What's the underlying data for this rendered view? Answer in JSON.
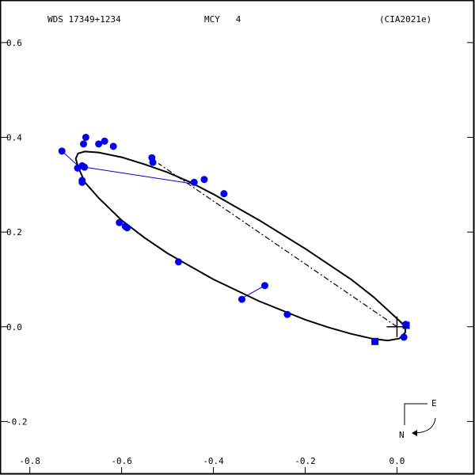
{
  "header": {
    "wds_label": "WDS 17349+1234",
    "disc_label": "MCY   4",
    "orbit_ref": "(CIA2021e)"
  },
  "compass": {
    "east": "E",
    "north": "N"
  },
  "colors": {
    "axes": "#000000",
    "orbit": "#000000",
    "obs_marker": "#0000ee",
    "residual": "#0000cc"
  },
  "chart_data": {
    "type": "scatter",
    "title": "",
    "xlabel": "",
    "ylabel": "",
    "xlim": [
      -0.865,
      0.17
    ],
    "ylim": [
      -0.313,
      0.69
    ],
    "grid": false,
    "x_ticks": [
      {
        "value": -0.8,
        "label": "-0.8"
      },
      {
        "value": -0.6,
        "label": "-0.6"
      },
      {
        "value": -0.4,
        "label": "-0.4"
      },
      {
        "value": -0.2,
        "label": "-0.2"
      },
      {
        "value": 0.0,
        "label": "0.0"
      }
    ],
    "y_ticks": [
      {
        "value": 0.6,
        "label": "0.6"
      },
      {
        "value": 0.4,
        "label": "0.4"
      },
      {
        "value": 0.2,
        "label": "0.2"
      },
      {
        "value": 0.0,
        "label": "0.0"
      },
      {
        "value": -0.2,
        "label": "-0.2"
      }
    ],
    "orbit_path": [
      [
        0.018,
        0.0
      ],
      [
        0.005,
        0.013
      ],
      [
        -0.05,
        0.062
      ],
      [
        -0.1,
        0.1
      ],
      [
        -0.2,
        0.165
      ],
      [
        -0.3,
        0.225
      ],
      [
        -0.4,
        0.28
      ],
      [
        -0.45,
        0.305
      ],
      [
        -0.5,
        0.326
      ],
      [
        -0.55,
        0.343
      ],
      [
        -0.6,
        0.358
      ],
      [
        -0.65,
        0.368
      ],
      [
        -0.68,
        0.37
      ],
      [
        -0.695,
        0.366
      ],
      [
        -0.7,
        0.355
      ],
      [
        -0.695,
        0.338
      ],
      [
        -0.68,
        0.305
      ],
      [
        -0.65,
        0.272
      ],
      [
        -0.6,
        0.225
      ],
      [
        -0.55,
        0.188
      ],
      [
        -0.5,
        0.155
      ],
      [
        -0.4,
        0.1
      ],
      [
        -0.3,
        0.054
      ],
      [
        -0.2,
        0.015
      ],
      [
        -0.15,
        -0.001
      ],
      [
        -0.1,
        -0.015
      ],
      [
        -0.05,
        -0.026
      ],
      [
        -0.02,
        -0.029
      ],
      [
        0.005,
        -0.025
      ],
      [
        0.018,
        -0.012
      ],
      [
        0.018,
        0.0
      ]
    ],
    "line_of_apsides": [
      [
        0.0,
        0.0
      ],
      [
        -0.52,
        0.345
      ]
    ],
    "primary": [
      0.0,
      0.0
    ],
    "observations": [
      {
        "x": -0.73,
        "y": 0.371,
        "fx": -0.695,
        "fy": 0.34
      },
      {
        "x": -0.678,
        "y": 0.4
      },
      {
        "x": -0.683,
        "y": 0.386
      },
      {
        "x": -0.65,
        "y": 0.386
      },
      {
        "x": -0.637,
        "y": 0.392
      },
      {
        "x": -0.618,
        "y": 0.381
      },
      {
        "x": -0.696,
        "y": 0.335
      },
      {
        "x": -0.686,
        "y": 0.34
      },
      {
        "x": -0.681,
        "y": 0.337,
        "fx": -0.445,
        "fy": 0.302
      },
      {
        "x": -0.686,
        "y": 0.309
      },
      {
        "x": -0.686,
        "y": 0.305
      },
      {
        "x": -0.534,
        "y": 0.357
      },
      {
        "x": -0.532,
        "y": 0.347
      },
      {
        "x": -0.442,
        "y": 0.305
      },
      {
        "x": -0.42,
        "y": 0.311
      },
      {
        "x": -0.377,
        "y": 0.281
      },
      {
        "x": -0.605,
        "y": 0.22
      },
      {
        "x": -0.592,
        "y": 0.212
      },
      {
        "x": -0.588,
        "y": 0.209
      },
      {
        "x": -0.476,
        "y": 0.137
      },
      {
        "x": -0.338,
        "y": 0.058
      },
      {
        "x": -0.288,
        "y": 0.087,
        "fx": -0.338,
        "fy": 0.06
      },
      {
        "x": -0.239,
        "y": 0.026
      },
      {
        "x": 0.015,
        "y": -0.022
      },
      {
        "x": 0.019,
        "y": 0.005
      }
    ],
    "speckle_observations": [
      {
        "x": -0.048,
        "y": -0.031
      },
      {
        "x": 0.02,
        "y": 0.003
      }
    ]
  }
}
